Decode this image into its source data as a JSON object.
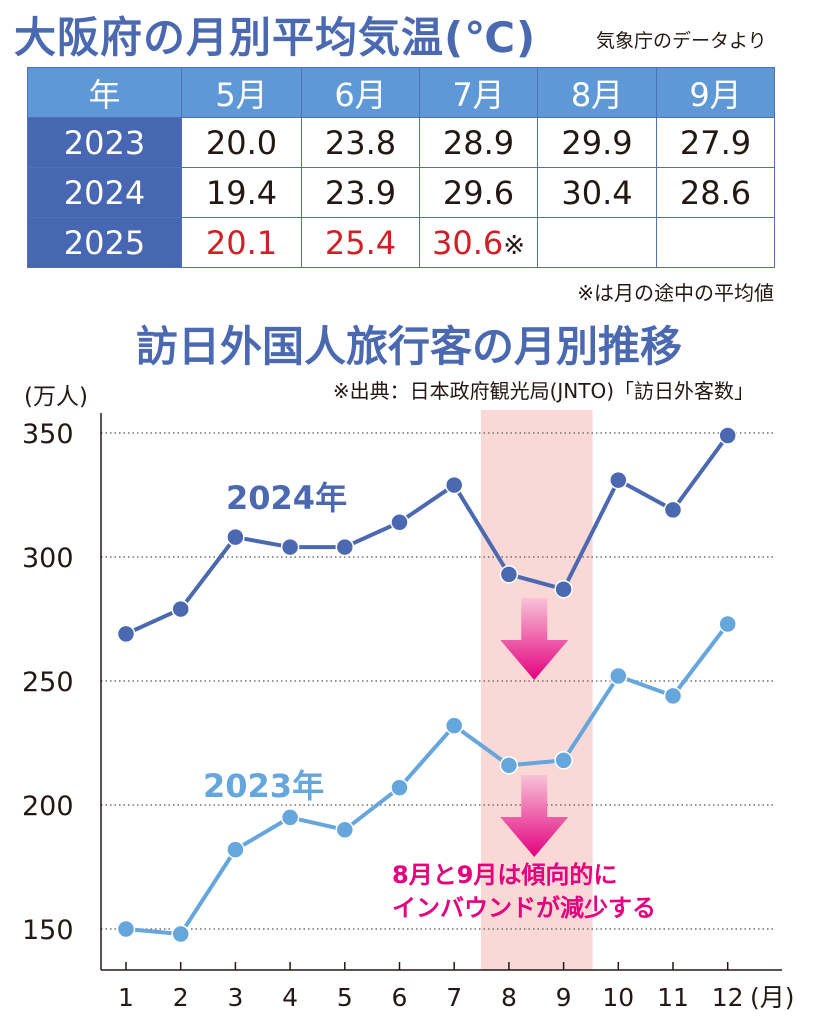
{
  "temperature": {
    "title": "大阪府の月別平均気温(℃)",
    "source": "気象庁のデータより",
    "header": [
      "年",
      "5月",
      "6月",
      "7月",
      "8月",
      "9月"
    ],
    "rows": [
      {
        "year": "2023",
        "values": [
          "20.0",
          "23.8",
          "28.9",
          "29.9",
          "27.9"
        ]
      },
      {
        "year": "2024",
        "values": [
          "19.4",
          "23.9",
          "29.6",
          "30.4",
          "28.6"
        ]
      },
      {
        "year": "2025",
        "values": [
          "20.1",
          "25.4",
          "30.6",
          "",
          ""
        ]
      }
    ],
    "partial_mark": "※",
    "note": "※は月の途中の平均値",
    "highlight_color": "#d11f26"
  },
  "chart_data": {
    "type": "line",
    "title": "訪日外国人旅行客の月別推移",
    "source": "※出典：日本政府観光局(JNTO)「訪日外客数」",
    "ylabel": "(万人)",
    "xlabel": "(月)",
    "x": [
      1,
      2,
      3,
      4,
      5,
      6,
      7,
      8,
      9,
      10,
      11,
      12
    ],
    "x_tick_labels": [
      "1",
      "2",
      "3",
      "4",
      "5",
      "6",
      "7",
      "8",
      "9",
      "10",
      "11",
      "12"
    ],
    "y_ticks": [
      150,
      200,
      250,
      300,
      350
    ],
    "ylim": [
      140,
      355
    ],
    "grid": "dotted horizontal",
    "highlight_band": {
      "from": 8,
      "to": 9,
      "color": "#f9d8d6"
    },
    "series": [
      {
        "name": "2024年",
        "color": "#4a69b0",
        "values": [
          269,
          279,
          308,
          304,
          304,
          314,
          329,
          293,
          287,
          331,
          319,
          349
        ]
      },
      {
        "name": "2023年",
        "color": "#65a6dc",
        "values": [
          150,
          148,
          182,
          195,
          190,
          207,
          232,
          216,
          218,
          252,
          244,
          273
        ]
      }
    ],
    "annotation": [
      "8月と9月は傾向的に",
      "インバウンドが減少する"
    ],
    "annotation_color": "#e4007f"
  }
}
